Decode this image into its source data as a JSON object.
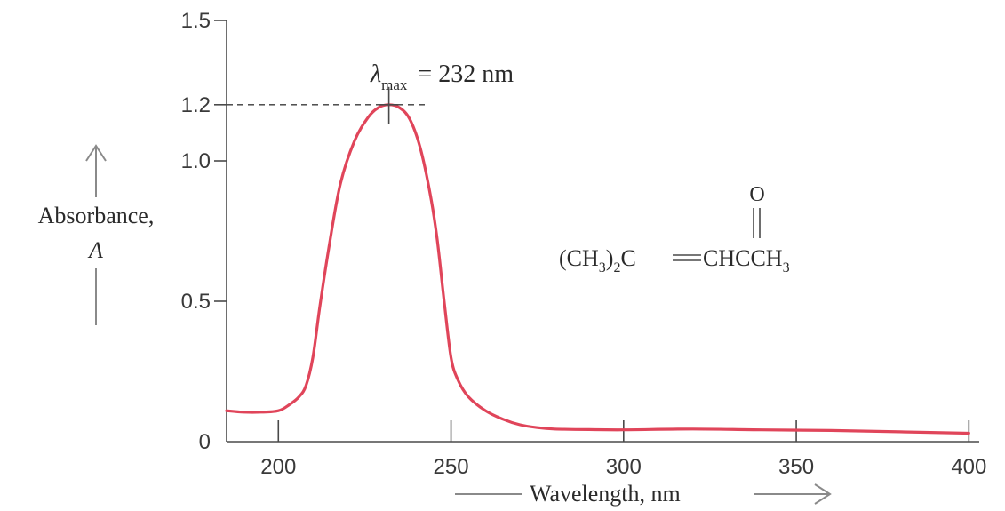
{
  "chart_data": {
    "type": "line",
    "xlabel": "Wavelength, nm",
    "ylabel_line1": "Absorbance,",
    "ylabel_line2": "A",
    "xlim": [
      185,
      403
    ],
    "ylim": [
      0,
      1.5
    ],
    "x_ticks": [
      200,
      250,
      300,
      350,
      400
    ],
    "x_tick_labels": [
      "200",
      "250",
      "300",
      "350",
      "400"
    ],
    "y_ticks": [
      0,
      0.5,
      1.0,
      1.2,
      1.5
    ],
    "y_tick_labels": [
      "0",
      "0.5",
      "1.0",
      "1.2",
      "1.5"
    ],
    "peak_annotation": {
      "lambda_symbol": "λ",
      "subscript": "max",
      "suffix": "= 232 nm",
      "x": 232,
      "y": 1.2
    },
    "molecule": {
      "carbonyl_o": "O",
      "part1": "(CH",
      "sub1": "3",
      "part2": ")",
      "sub2": "2",
      "part3": "C",
      "part4": "CHCCH",
      "sub3": "3"
    },
    "series": [
      {
        "color": "#e0455a",
        "x": [
          185,
          190,
          195,
          200,
          203,
          206,
          208,
          210,
          212,
          215,
          218,
          222,
          226,
          229,
          232,
          235,
          238,
          241,
          244,
          246,
          248,
          250,
          252,
          255,
          260,
          265,
          270,
          275,
          280,
          290,
          300,
          320,
          340,
          360,
          380,
          400
        ],
        "y": [
          0.11,
          0.105,
          0.105,
          0.11,
          0.13,
          0.16,
          0.2,
          0.3,
          0.48,
          0.72,
          0.92,
          1.07,
          1.155,
          1.19,
          1.2,
          1.19,
          1.15,
          1.05,
          0.88,
          0.72,
          0.5,
          0.3,
          0.22,
          0.16,
          0.11,
          0.08,
          0.06,
          0.05,
          0.045,
          0.043,
          0.042,
          0.045,
          0.042,
          0.04,
          0.035,
          0.03
        ]
      }
    ]
  }
}
